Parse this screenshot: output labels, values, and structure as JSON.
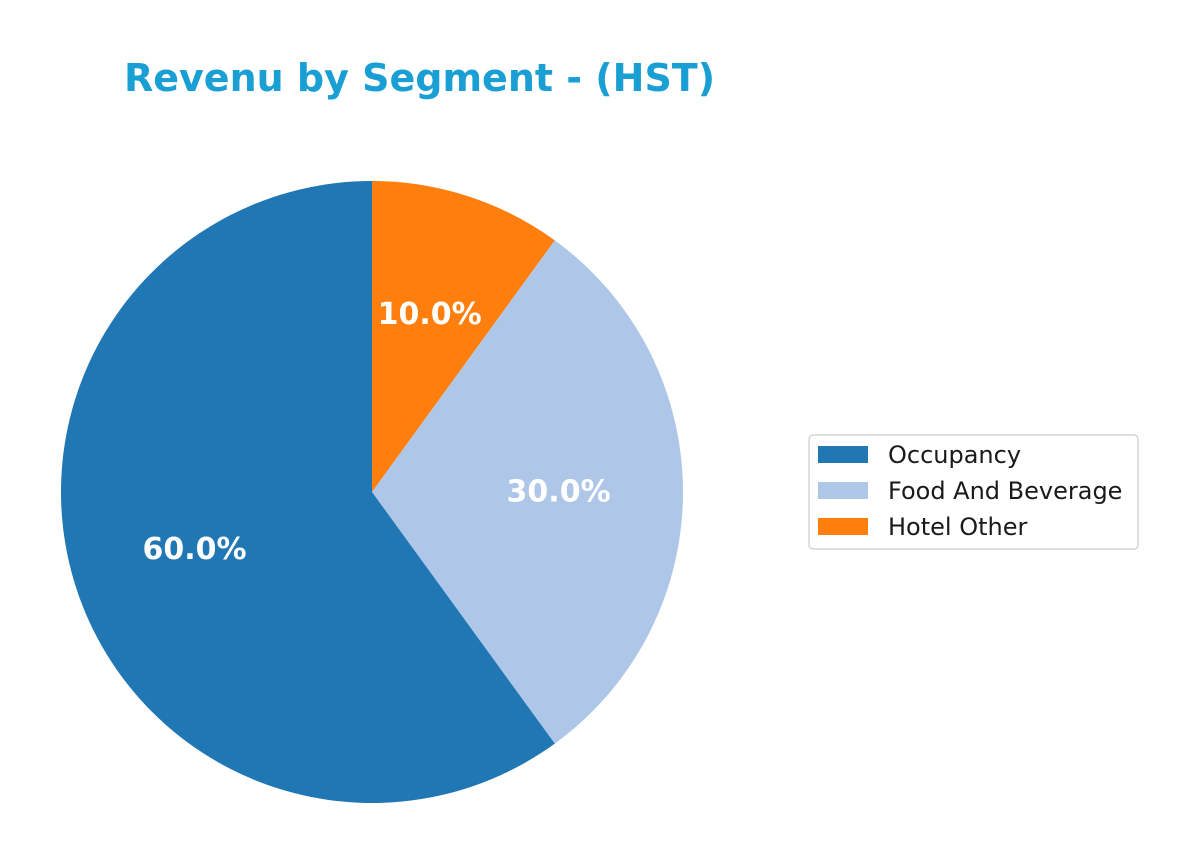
{
  "chart_data": {
    "type": "pie",
    "title": "Revenu by Segment - (HST)",
    "title_color": "#1a9fd4",
    "categories": [
      "Occupancy",
      "Food And Beverage",
      "Hotel Other"
    ],
    "values": [
      60.0,
      30.0,
      10.0
    ],
    "labels": [
      "60.0%",
      "30.0%",
      "10.0%"
    ],
    "colors": [
      "#2077b4",
      "#aec7e8",
      "#ff7f0e"
    ],
    "start_angle_deg": 90,
    "direction": "clockwise-from-top: Hotel Other, Food And Beverage, then Occupancy",
    "legend_position": "right"
  }
}
